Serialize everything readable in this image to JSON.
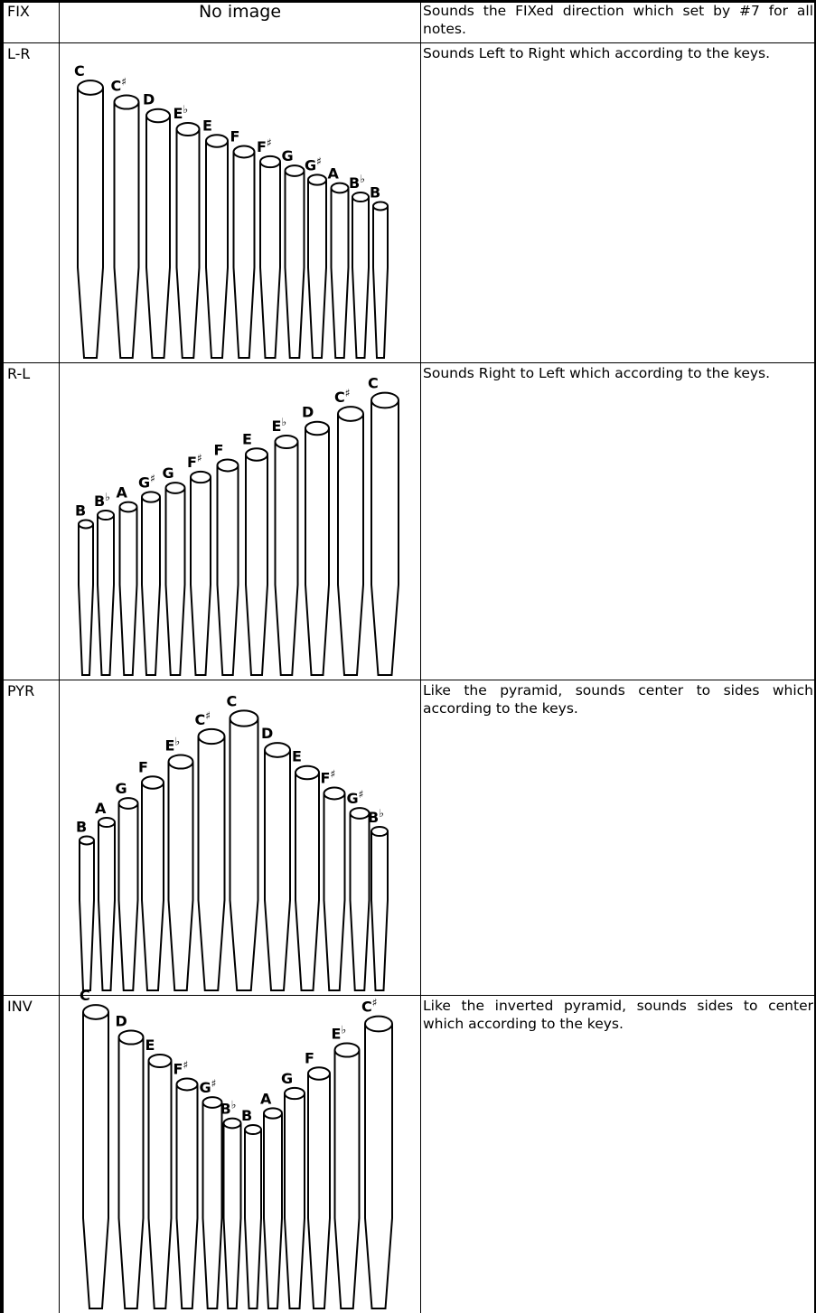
{
  "rows": [
    {
      "mode": "FIX",
      "image": "No image",
      "description": "Sounds the FIXed direction which set by #7 for all notes."
    },
    {
      "mode": "L-R",
      "description": "Sounds Left to Right which according to the keys.",
      "pipes": [
        {
          "letter": "C"
        },
        {
          "letter": "C",
          "accidental": "♯"
        },
        {
          "letter": "D"
        },
        {
          "letter": "E",
          "accidental": "♭"
        },
        {
          "letter": "E"
        },
        {
          "letter": "F"
        },
        {
          "letter": "F",
          "accidental": "♯"
        },
        {
          "letter": "G"
        },
        {
          "letter": "G",
          "accidental": "♯"
        },
        {
          "letter": "A"
        },
        {
          "letter": "B",
          "accidental": "♭"
        },
        {
          "letter": "B"
        }
      ]
    },
    {
      "mode": "R-L",
      "description": "Sounds Right to Left which according to the keys.",
      "pipes": [
        {
          "letter": "B"
        },
        {
          "letter": "B",
          "accidental": "♭"
        },
        {
          "letter": "A"
        },
        {
          "letter": "G",
          "accidental": "♯"
        },
        {
          "letter": "G"
        },
        {
          "letter": "F",
          "accidental": "♯"
        },
        {
          "letter": "F"
        },
        {
          "letter": "E"
        },
        {
          "letter": "E",
          "accidental": "♭"
        },
        {
          "letter": "D"
        },
        {
          "letter": "C",
          "accidental": "♯"
        },
        {
          "letter": "C"
        }
      ]
    },
    {
      "mode": "PYR",
      "description": "Like the pyramid, sounds center to sides which according to the keys.",
      "pipes": [
        {
          "letter": "B"
        },
        {
          "letter": "A"
        },
        {
          "letter": "G"
        },
        {
          "letter": "F"
        },
        {
          "letter": "E",
          "accidental": "♭"
        },
        {
          "letter": "C",
          "accidental": "♯"
        },
        {
          "letter": "C"
        },
        {
          "letter": "D"
        },
        {
          "letter": "E"
        },
        {
          "letter": "F",
          "accidental": "♯"
        },
        {
          "letter": "G",
          "accidental": "♯"
        },
        {
          "letter": "B",
          "accidental": "♭"
        }
      ]
    },
    {
      "mode": "INV",
      "description": "Like the inverted pyramid, sounds sides to center which according to the keys.",
      "pipes": [
        {
          "letter": "C"
        },
        {
          "letter": "D"
        },
        {
          "letter": "E"
        },
        {
          "letter": "F",
          "accidental": "♯"
        },
        {
          "letter": "G",
          "accidental": "♯"
        },
        {
          "letter": "B",
          "accidental": "♭"
        },
        {
          "letter": "B"
        },
        {
          "letter": "A"
        },
        {
          "letter": "G"
        },
        {
          "letter": "F"
        },
        {
          "letter": "E",
          "accidental": "♭"
        },
        {
          "letter": "C",
          "accidental": "♯"
        }
      ]
    }
  ]
}
